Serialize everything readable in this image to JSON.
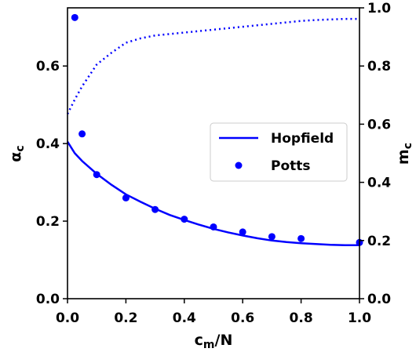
{
  "chart_data": {
    "type": "line",
    "x": [
      0.0,
      0.025,
      0.05,
      0.1,
      0.15,
      0.2,
      0.25,
      0.3,
      0.35,
      0.4,
      0.45,
      0.5,
      0.55,
      0.6,
      0.65,
      0.7,
      0.75,
      0.8,
      0.85,
      0.9,
      0.95,
      1.0
    ],
    "xlabel": "c_m/N",
    "ylabel_left": "α_c",
    "ylabel_right": "m_c",
    "xlim": [
      0,
      1
    ],
    "ylim_left": [
      0,
      0.75
    ],
    "ylim_right": [
      0,
      1.0
    ],
    "xticks": [
      "0.0",
      "0.2",
      "0.4",
      "0.6",
      "0.8",
      "1.0"
    ],
    "yticks_left": [
      "0.0",
      "0.2",
      "0.4",
      "0.6"
    ],
    "yticks_right": [
      "0.0",
      "0.2",
      "0.4",
      "0.6",
      "0.8",
      "1.0"
    ],
    "color": "#0000ff",
    "legend_position": "center-right",
    "series": [
      {
        "name": "Hopfield",
        "style": "solid",
        "axis": "left",
        "values": [
          0.405,
          0.375,
          0.355,
          0.322,
          0.294,
          0.269,
          0.25,
          0.232,
          0.216,
          0.203,
          0.191,
          0.18,
          0.171,
          0.163,
          0.156,
          0.15,
          0.146,
          0.143,
          0.141,
          0.139,
          0.138,
          0.138
        ]
      },
      {
        "name": "Potts",
        "style": "points",
        "axis": "left",
        "x": [
          0.025,
          0.05,
          0.1,
          0.2,
          0.3,
          0.4,
          0.5,
          0.6,
          0.7,
          0.8,
          1.0
        ],
        "values": [
          0.725,
          0.425,
          0.32,
          0.26,
          0.23,
          0.205,
          0.185,
          0.172,
          0.16,
          0.155,
          0.145
        ]
      },
      {
        "name": "",
        "style": "dotted",
        "axis": "right",
        "values": [
          0.635,
          0.685,
          0.73,
          0.805,
          0.845,
          0.88,
          0.895,
          0.905,
          0.91,
          0.915,
          0.92,
          0.925,
          0.93,
          0.935,
          0.94,
          0.945,
          0.95,
          0.955,
          0.958,
          0.96,
          0.962,
          0.962
        ]
      }
    ],
    "legend": [
      {
        "label": "Hopfield",
        "marker": "line"
      },
      {
        "label": "Potts",
        "marker": "dot"
      }
    ]
  }
}
